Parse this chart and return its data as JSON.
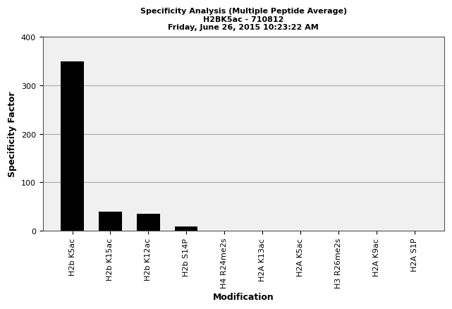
{
  "title_line1": "Specificity Analysis (Multiple Peptide Average)",
  "title_line2": "H2BK5ac - 710812",
  "title_line3": "Friday, June 26, 2015 10:23:22 AM",
  "categories": [
    "H2b K5ac",
    "H2b K15ac",
    "H2b K12ac",
    "H2b S14P",
    "H4 R24me2s",
    "H2A K13ac",
    "H2A K5ac",
    "H3 R26me2s",
    "H2A K9ac",
    "H2A S1P"
  ],
  "values": [
    350,
    40,
    35,
    8,
    0.5,
    0.3,
    0.2,
    0.2,
    0.2,
    0.1
  ],
  "bar_color": "#000000",
  "ylabel": "Specificity Factor",
  "xlabel": "Modification",
  "ylim": [
    0,
    400
  ],
  "yticks": [
    0,
    100,
    200,
    300,
    400
  ],
  "background_color": "#ffffff",
  "plot_bg_color": "#f0f0f0",
  "title_fontsize": 8,
  "axis_label_fontsize": 9,
  "tick_fontsize": 8
}
